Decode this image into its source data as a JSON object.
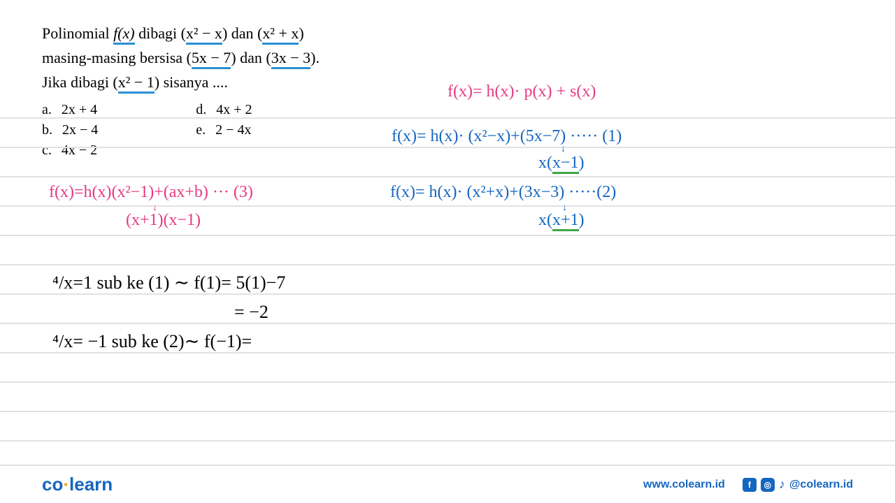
{
  "problem": {
    "line1_pre": "Polinomial ",
    "line1_fx": "f(x)",
    "line1_mid1": " dibagi (",
    "line1_div1": "x² − x",
    "line1_mid2": ") dan (",
    "line1_div2": "x² + x",
    "line1_end": ")",
    "line2_pre": "masing-masing bersisa (",
    "line2_r1": "5x − 7",
    "line2_mid": ") dan (",
    "line2_r2": "3x − 3",
    "line2_end": ").",
    "line3_pre": "Jika dibagi (",
    "line3_div": "x² − 1",
    "line3_end": ") sisanya ...."
  },
  "options": {
    "a": "2x + 4",
    "b": "2x − 4",
    "c": "4x − 2",
    "d": "4x + 2",
    "e": "2 − 4x"
  },
  "annotations": {
    "formula_main": "f(x)= h(x)· p(x) + s(x)",
    "eq1": "f(x)= h(x)· (x²−x)+(5x−7)  ····· (1)",
    "eq1_factored": "x(x−1)",
    "eq2": "f(x)= h(x)· (x²+x)+(3x−3)  ·····(2)",
    "eq2_factored": "x(x+1)",
    "eq3": "f(x)=h(x)(x²−1)+(ax+b) ··· (3)",
    "eq3_factored": "(x+1)(x−1)",
    "sub1": "⁴/x=1 sub ke (1) ∼ f(1)= 5(1)−7",
    "sub1_result": "= −2",
    "sub2": "⁴/x= −1 sub ke (2)∼ f(−1)="
  },
  "footer": {
    "logo_co": "co",
    "logo_dot": "·",
    "logo_learn": "learn",
    "website": "www.colearn.id",
    "handle": "@colearn.id"
  },
  "colors": {
    "pink": "#e63980",
    "blue": "#1566c0",
    "green": "#3ca846",
    "underline_blue": "#2a8fd4",
    "rule": "#e2e2e2",
    "black": "#000000"
  },
  "ruled_lines_y": [
    168,
    210,
    252,
    294,
    336,
    378,
    420,
    462,
    504,
    546,
    588,
    630
  ]
}
